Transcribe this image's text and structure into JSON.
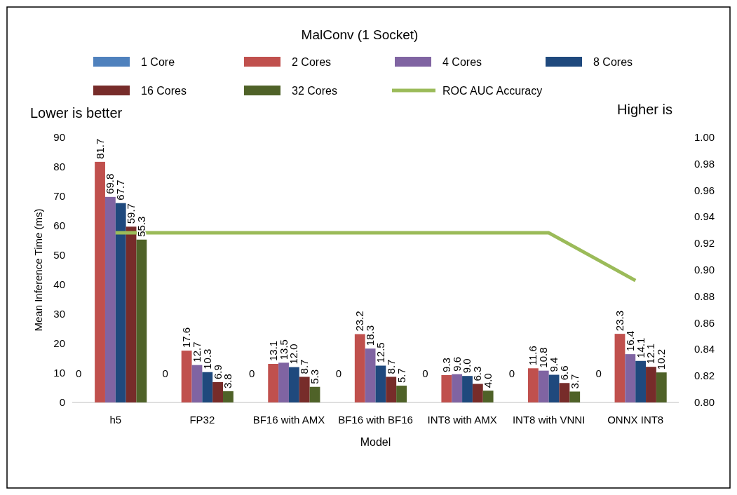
{
  "chart_data": {
    "type": "bar",
    "title": "MalConv (1 Socket)",
    "xlabel": "Model",
    "ylabel": "Mean Inference Time (ms)",
    "categories": [
      "h5",
      "FP32",
      "BF16 with AMX",
      "BF16 with BF16",
      "INT8 with AMX",
      "INT8 with VNNI",
      "ONNX INT8"
    ],
    "series": [
      {
        "name": "1 Core",
        "color": "#4f81bd",
        "values": [
          0,
          0,
          0,
          0,
          0,
          0,
          0
        ]
      },
      {
        "name": "2 Cores",
        "color": "#c0504d",
        "values": [
          81.7,
          17.6,
          13.1,
          23.2,
          9.3,
          11.6,
          23.3
        ],
        "value_labels": [
          "81.7",
          "17.6",
          "13.1",
          "23.2",
          "9.3",
          "11.6",
          "23.3"
        ]
      },
      {
        "name": "4 Cores",
        "color": "#8064a2",
        "values": [
          69.8,
          12.7,
          13.5,
          18.3,
          9.6,
          10.8,
          16.4
        ],
        "value_labels": [
          "69.8",
          "12.7",
          "13.5",
          "18.3",
          "9.6",
          "10.8",
          "16.4"
        ]
      },
      {
        "name": "8 Cores",
        "color": "#1f497d",
        "values": [
          67.7,
          10.3,
          12.0,
          12.5,
          9.0,
          9.4,
          14.1
        ],
        "value_labels": [
          "67.7",
          "10.3",
          "12.0",
          "12.5",
          "9.0",
          "9.4",
          "14.1"
        ]
      },
      {
        "name": "16 Cores",
        "color": "#772c2a",
        "values": [
          59.7,
          6.9,
          8.7,
          8.7,
          6.3,
          6.6,
          12.1
        ],
        "value_labels": [
          "59.7",
          "6.9",
          "8.7",
          "8.7",
          "6.3",
          "6.6",
          "12.1"
        ]
      },
      {
        "name": "32 Cores",
        "color": "#4f6228",
        "values": [
          55.3,
          3.8,
          5.3,
          5.7,
          4.0,
          3.7,
          10.2
        ],
        "value_labels": [
          "55.3",
          "3.8",
          "5.3",
          "5.7",
          "4.0",
          "3.7",
          "10.2"
        ]
      },
      {
        "name": "ROC AUC Accuracy",
        "type": "line",
        "axis": "y2",
        "color": "#9bbb59",
        "values": [
          0.928,
          0.928,
          0.928,
          0.928,
          0.928,
          0.928,
          0.892
        ]
      }
    ],
    "ylim": [
      0,
      90
    ],
    "yticks": [
      0,
      10,
      20,
      30,
      40,
      50,
      60,
      70,
      80,
      90
    ],
    "y2lim": [
      0.8,
      1.0
    ],
    "y2ticks": [
      {
        "value": 0.8,
        "label": "0.80"
      },
      {
        "value": 0.82,
        "label": "0.82"
      },
      {
        "value": 0.84,
        "label": "0.84"
      },
      {
        "value": 0.86,
        "label": "0.86"
      },
      {
        "value": 0.88,
        "label": "0.88"
      },
      {
        "value": 0.9,
        "label": "0.90"
      },
      {
        "value": 0.92,
        "label": "0.92"
      },
      {
        "value": 0.94,
        "label": "0.94"
      },
      {
        "value": 0.96,
        "label": "0.96"
      },
      {
        "value": 0.98,
        "label": "0.98"
      },
      {
        "value": 1.0,
        "label": "1.00"
      }
    ],
    "annotations": [
      "Lower is better",
      "Higher is",
      "0",
      "0",
      "0",
      "0",
      "0",
      "0",
      "0"
    ],
    "legend": "top",
    "grid": false
  }
}
